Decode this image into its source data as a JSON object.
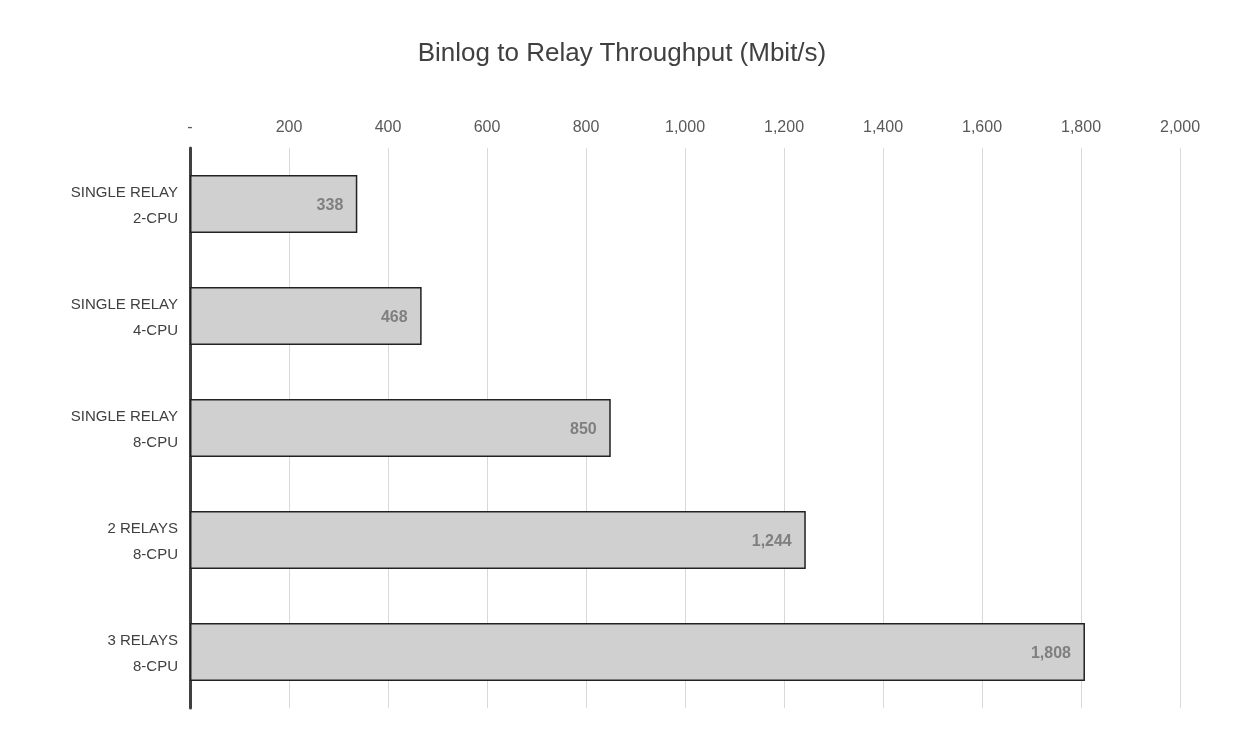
{
  "chart_data": {
    "type": "bar",
    "orientation": "horizontal",
    "title": "Binlog to Relay Throughput (Mbit/s)",
    "categories": [
      "SINGLE RELAY\n2-CPU",
      "SINGLE RELAY\n4-CPU",
      "SINGLE RELAY\n8-CPU",
      "2 RELAYS\n8-CPU",
      "3 RELAYS\n8-CPU"
    ],
    "values": [
      338,
      468,
      850,
      1244,
      1808
    ],
    "value_labels": [
      "338",
      "468",
      "850",
      "1,244",
      "1,808"
    ],
    "color": "#d0d0d0",
    "xlim": [
      0,
      2000
    ],
    "xticks": [
      {
        "value": 0,
        "label": "-"
      },
      200,
      400,
      600,
      800,
      {
        "value": 1000,
        "label": "1,000"
      },
      {
        "value": 1200,
        "label": "1,200"
      },
      {
        "value": 1400,
        "label": "1,400"
      },
      {
        "value": 1600,
        "label": "1,600"
      },
      {
        "value": 1800,
        "label": "1,800"
      },
      {
        "value": 2000,
        "label": "2,000"
      }
    ],
    "grid": "x"
  }
}
